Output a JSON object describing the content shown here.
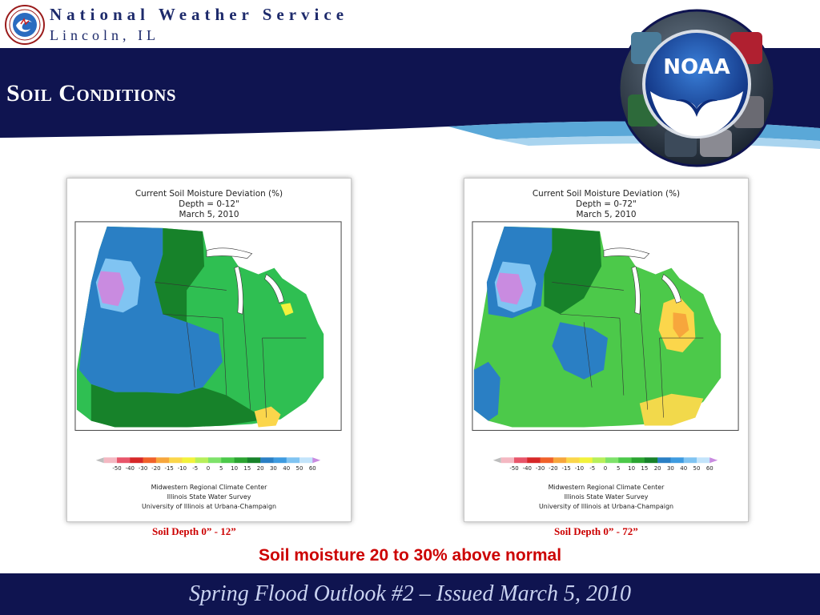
{
  "header": {
    "org_name": "National Weather Service",
    "office": "Lincoln, IL",
    "title": "Soil Conditions",
    "nws_logo_icon": "nws-logo-icon",
    "noaa_logo_text": "NOAA"
  },
  "colors": {
    "header_navy": "#0f1450",
    "org_text": "#1d2a6b",
    "accent_blue": "#5aa8d8",
    "caption_red": "#cc0000"
  },
  "maps": [
    {
      "title": "Current Soil Moisture Deviation (%)",
      "depth": "Depth = 0-12\"",
      "date": "March 5, 2010",
      "caption": "Soil Depth 0” - 12”"
    },
    {
      "title": "Current Soil Moisture Deviation (%)",
      "depth": "Depth = 0-72\"",
      "date": "March 5, 2010",
      "caption": "Soil Depth 0” - 72”"
    }
  ],
  "legend": {
    "ticks": [
      "-50",
      "-40",
      "-30",
      "-20",
      "-15",
      "-10",
      "-5",
      "0",
      "5",
      "10",
      "15",
      "20",
      "30",
      "40",
      "50",
      "60"
    ],
    "colors": [
      "#bdbdbd",
      "#f4b8c2",
      "#e8556a",
      "#d62728",
      "#f0612a",
      "#f7a63c",
      "#fbd64b",
      "#f2f23c",
      "#b7ef5a",
      "#7ee26a",
      "#4cc94a",
      "#2ba431",
      "#17822a",
      "#2a7fc4",
      "#3e9be0",
      "#80c4f2",
      "#c3e4fb",
      "#c98be0"
    ]
  },
  "credits": [
    "Midwestern Regional Climate Center",
    "Illinois State Water Survey",
    "University of Illinois at Urbana-Champaign"
  ],
  "summary": "Soil moisture 20 to 30% above normal",
  "footer": "Spring Flood Outlook #2 – Issued March 5, 2010"
}
